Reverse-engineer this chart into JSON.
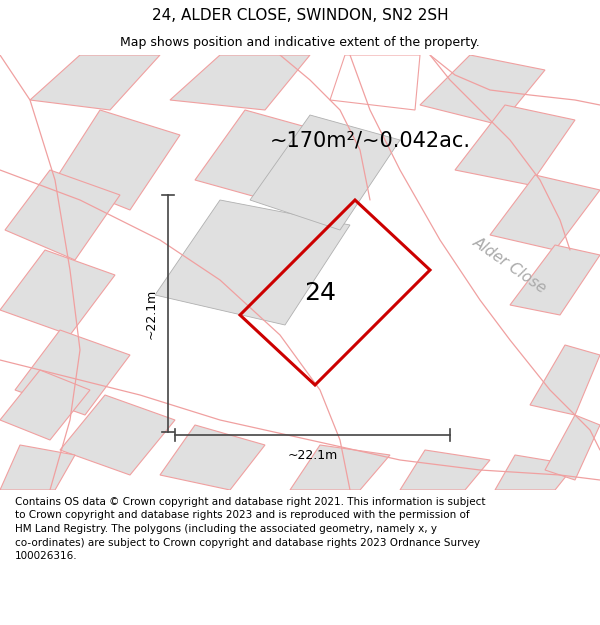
{
  "title": "24, ALDER CLOSE, SWINDON, SN2 2SH",
  "subtitle": "Map shows position and indicative extent of the property.",
  "area_label": "~170m²/~0.042ac.",
  "plot_label": "24",
  "dim_h": "~22.1m",
  "dim_v": "~22.1m",
  "street_label": "Alder Close",
  "footer": "Contains OS data © Crown copyright and database right 2021. This information is subject\nto Crown copyright and database rights 2023 and is reproduced with the permission of\nHM Land Registry. The polygons (including the associated geometry, namely x, y\nco-ordinates) are subject to Crown copyright and database rights 2023 Ordnance Survey\n100026316.",
  "map_bg": "#f5f5f5",
  "plot_color": "#cc0000",
  "building_fill": "#e0e0e0",
  "building_edge_pink": "#f0a0a0",
  "building_edge_gray": "#b0b0b0",
  "road_color": "#f0a0a0",
  "dim_color": "#444444",
  "street_label_color": "#aaaaaa",
  "title_fontsize": 11,
  "subtitle_fontsize": 9,
  "area_fontsize": 15,
  "plot_label_fontsize": 18,
  "dim_fontsize": 9,
  "street_fontsize": 11,
  "footer_fontsize": 7.5
}
